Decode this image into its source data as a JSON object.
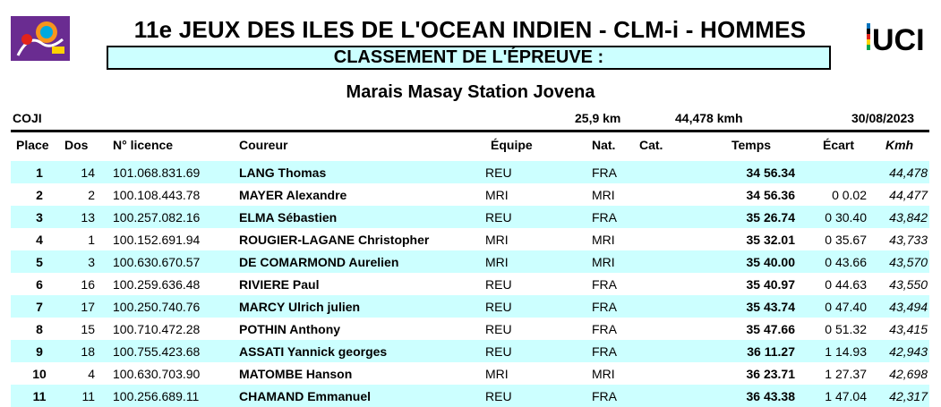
{
  "header": {
    "title": "11e JEUX DES ILES DE L'OCEAN INDIEN - CLM-i - HOMMES",
    "subtitle": "CLASSEMENT DE  L'ÉPREUVE :",
    "venue": "Marais Masay Station Jovena",
    "organizer": "COJI",
    "distance": "25,9 km",
    "avg_speed": "44,478 kmh",
    "date": "30/08/2023",
    "uci_logo_text": "UCI"
  },
  "colors": {
    "row_highlight": "#ccffff",
    "uci_colors": [
      "#0072bc",
      "#000000",
      "#e2231a",
      "#ffd200",
      "#00a651"
    ]
  },
  "columns": {
    "place": "Place",
    "dos": "Dos",
    "licence": "N° licence",
    "rider": "Coureur",
    "team": "Équipe",
    "nat": "Nat.",
    "cat": "Cat.",
    "time": "Temps",
    "gap": "Écart",
    "kmh": "Kmh"
  },
  "rows": [
    {
      "place": "1",
      "dos": "14",
      "licence": "101.068.831.69",
      "rider": "LANG Thomas",
      "team": "REU",
      "nat": "FRA",
      "time": "34  56.34",
      "gap": "",
      "kmh": "44,478"
    },
    {
      "place": "2",
      "dos": "2",
      "licence": "100.108.443.78",
      "rider": "MAYER Alexandre",
      "team": "MRI",
      "nat": "MRI",
      "time": "34  56.36",
      "gap": "0   0.02",
      "kmh": "44,477"
    },
    {
      "place": "3",
      "dos": "13",
      "licence": "100.257.082.16",
      "rider": "ELMA Sébastien",
      "team": "REU",
      "nat": "FRA",
      "time": "35  26.74",
      "gap": "0  30.40",
      "kmh": "43,842"
    },
    {
      "place": "4",
      "dos": "1",
      "licence": "100.152.691.94",
      "rider": "ROUGIER-LAGANE Christopher",
      "team": "MRI",
      "nat": "MRI",
      "time": "35  32.01",
      "gap": "0  35.67",
      "kmh": "43,733"
    },
    {
      "place": "5",
      "dos": "3",
      "licence": "100.630.670.57",
      "rider": "DE COMARMOND Aurelien",
      "team": "MRI",
      "nat": "MRI",
      "time": "35  40.00",
      "gap": "0  43.66",
      "kmh": "43,570"
    },
    {
      "place": "6",
      "dos": "16",
      "licence": "100.259.636.48",
      "rider": "RIVIERE Paul",
      "team": "REU",
      "nat": "FRA",
      "time": "35  40.97",
      "gap": "0  44.63",
      "kmh": "43,550"
    },
    {
      "place": "7",
      "dos": "17",
      "licence": "100.250.740.76",
      "rider": "MARCY Ulrich julien",
      "team": "REU",
      "nat": "FRA",
      "time": "35  43.74",
      "gap": "0  47.40",
      "kmh": "43,494"
    },
    {
      "place": "8",
      "dos": "15",
      "licence": "100.710.472.28",
      "rider": "POTHIN Anthony",
      "team": "REU",
      "nat": "FRA",
      "time": "35  47.66",
      "gap": "0  51.32",
      "kmh": "43,415"
    },
    {
      "place": "9",
      "dos": "18",
      "licence": "100.755.423.68",
      "rider": "ASSATI Yannick georges",
      "team": "REU",
      "nat": "FRA",
      "time": "36  11.27",
      "gap": "1  14.93",
      "kmh": "42,943"
    },
    {
      "place": "10",
      "dos": "4",
      "licence": "100.630.703.90",
      "rider": "MATOMBE Hanson",
      "team": "MRI",
      "nat": "MRI",
      "time": "36  23.71",
      "gap": "1  27.37",
      "kmh": "42,698"
    },
    {
      "place": "11",
      "dos": "11",
      "licence": "100.256.689.11",
      "rider": "CHAMAND Emmanuel",
      "team": "REU",
      "nat": "FRA",
      "time": "36  43.38",
      "gap": "1  47.04",
      "kmh": "42,317"
    }
  ]
}
